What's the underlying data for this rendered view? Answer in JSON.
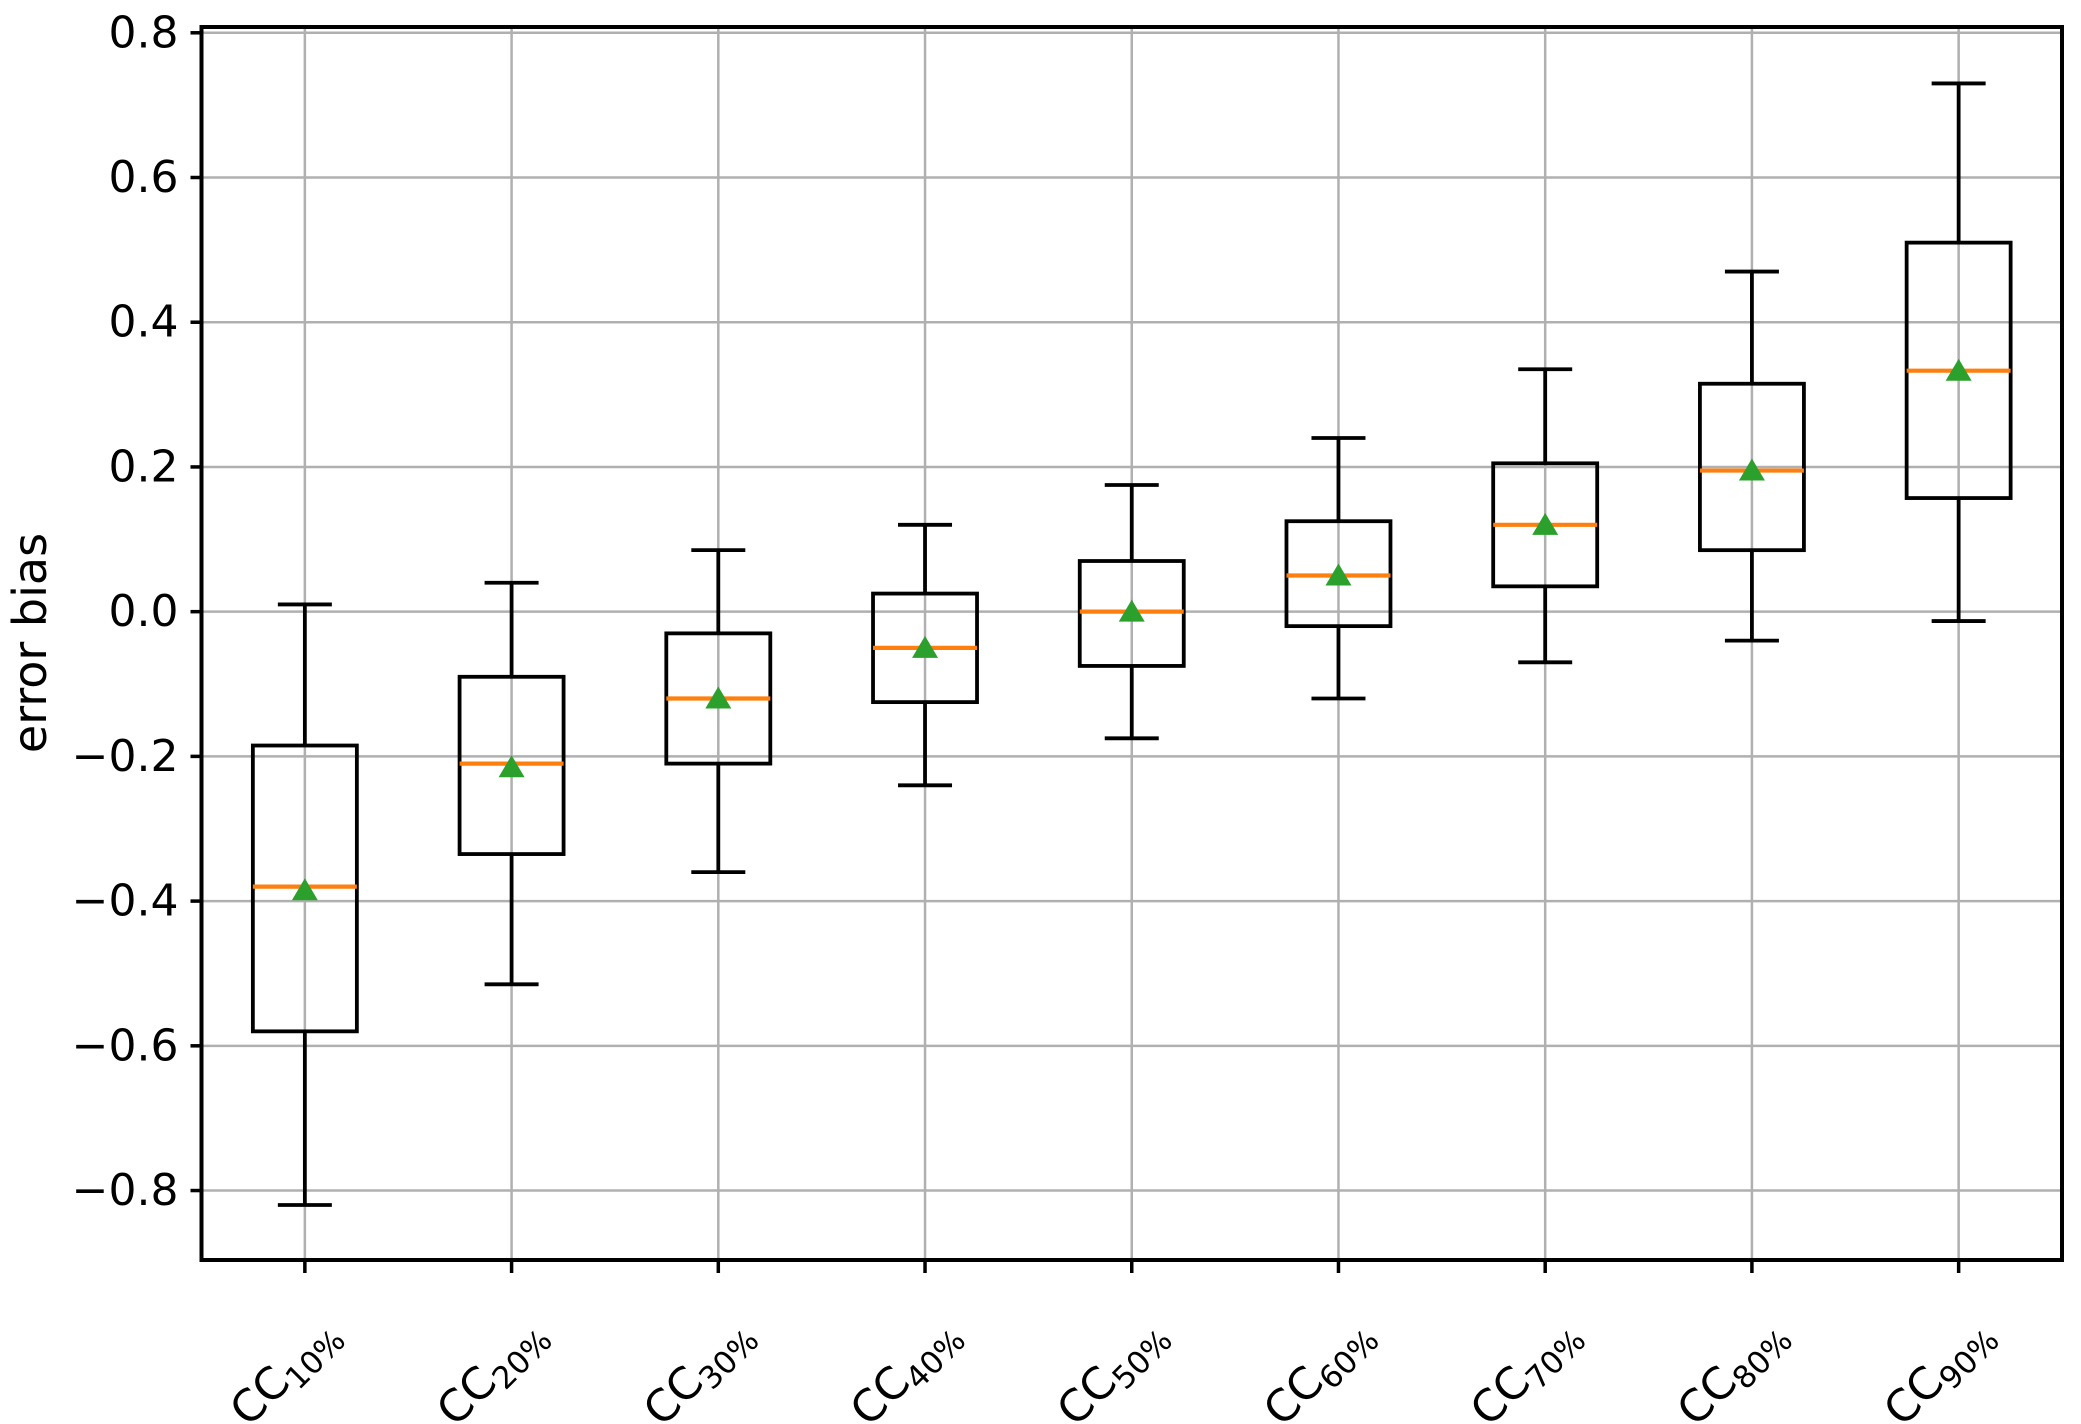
{
  "figure": {
    "background": "#ffffff"
  },
  "chart_data": {
    "type": "box",
    "title": "",
    "xlabel": "",
    "ylabel": "error bias",
    "grid": true,
    "legend": false,
    "ylim": [
      -0.896,
      0.808
    ],
    "yticks": [
      -0.8,
      -0.6,
      -0.4,
      -0.2,
      0.0,
      0.2,
      0.4,
      0.6,
      0.8
    ],
    "ytick_labels": [
      "−0.8",
      "−0.6",
      "−0.4",
      "−0.2",
      "0.0",
      "0.2",
      "0.4",
      "0.6",
      "0.8"
    ],
    "x_label_rotation_deg": 45,
    "categories": [
      {
        "base": "CC",
        "sub": "10%"
      },
      {
        "base": "CC",
        "sub": "20%"
      },
      {
        "base": "CC",
        "sub": "30%"
      },
      {
        "base": "CC",
        "sub": "40%"
      },
      {
        "base": "CC",
        "sub": "50%"
      },
      {
        "base": "CC",
        "sub": "60%"
      },
      {
        "base": "CC",
        "sub": "70%"
      },
      {
        "base": "CC",
        "sub": "80%"
      },
      {
        "base": "CC",
        "sub": "90%"
      }
    ],
    "boxes": [
      {
        "label": "CC 10%",
        "whisker_low": -0.82,
        "q1": -0.58,
        "median": -0.38,
        "mean": -0.385,
        "q3": -0.185,
        "whisker_high": 0.01
      },
      {
        "label": "CC 20%",
        "whisker_low": -0.515,
        "q1": -0.335,
        "median": -0.21,
        "mean": -0.215,
        "q3": -0.09,
        "whisker_high": 0.04
      },
      {
        "label": "CC 30%",
        "whisker_low": -0.36,
        "q1": -0.21,
        "median": -0.12,
        "mean": -0.12,
        "q3": -0.03,
        "whisker_high": 0.085
      },
      {
        "label": "CC 40%",
        "whisker_low": -0.24,
        "q1": -0.125,
        "median": -0.05,
        "mean": -0.05,
        "q3": 0.025,
        "whisker_high": 0.12
      },
      {
        "label": "CC 50%",
        "whisker_low": -0.175,
        "q1": -0.075,
        "median": 0.0,
        "mean": 0.0,
        "q3": 0.07,
        "whisker_high": 0.175
      },
      {
        "label": "CC 60%",
        "whisker_low": -0.12,
        "q1": -0.02,
        "median": 0.05,
        "mean": 0.05,
        "q3": 0.125,
        "whisker_high": 0.24
      },
      {
        "label": "CC 70%",
        "whisker_low": -0.07,
        "q1": 0.035,
        "median": 0.12,
        "mean": 0.12,
        "q3": 0.205,
        "whisker_high": 0.335
      },
      {
        "label": "CC 80%",
        "whisker_low": -0.04,
        "q1": 0.085,
        "median": 0.195,
        "mean": 0.195,
        "q3": 0.315,
        "whisker_high": 0.47
      },
      {
        "label": "CC 90%",
        "whisker_low": -0.013,
        "q1": 0.157,
        "median": 0.333,
        "mean": 0.333,
        "q3": 0.51,
        "whisker_high": 0.73
      }
    ],
    "colors": {
      "box_edge": "#000000",
      "median": "#ff7f0e",
      "mean_marker": "#2ca02c",
      "grid": "#b0b0b0",
      "spine": "#000000",
      "text": "#000000",
      "background": "#ffffff"
    }
  }
}
